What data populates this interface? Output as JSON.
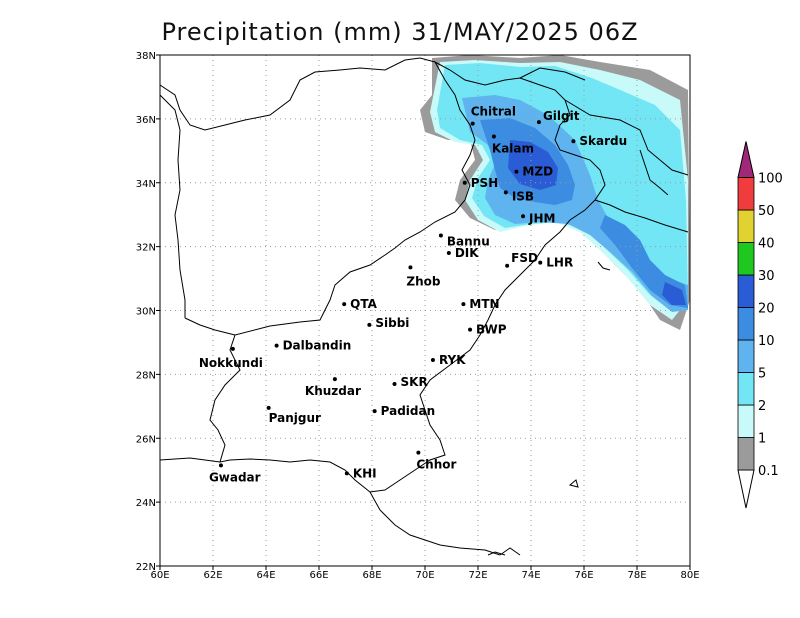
{
  "title": "Precipitation (mm) 31/MAY/2025 06Z",
  "map": {
    "lon_range": [
      60,
      80
    ],
    "lat_range": [
      22,
      38
    ],
    "x_ticks": [
      "60E",
      "62E",
      "64E",
      "66E",
      "68E",
      "70E",
      "72E",
      "74E",
      "76E",
      "78E",
      "80E"
    ],
    "y_ticks": [
      "22N",
      "24N",
      "26N",
      "28N",
      "30N",
      "32N",
      "34N",
      "36N",
      "38N"
    ],
    "gridlines": true
  },
  "cities": [
    {
      "name": "Chitral",
      "lon": 71.8,
      "lat": 35.85
    },
    {
      "name": "Gilgit",
      "lon": 74.3,
      "lat": 35.9
    },
    {
      "name": "Kalam",
      "lon": 72.6,
      "lat": 35.45
    },
    {
      "name": "Skardu",
      "lon": 75.6,
      "lat": 35.3
    },
    {
      "name": "MZD",
      "lon": 73.45,
      "lat": 34.35
    },
    {
      "name": "PSH",
      "lon": 71.5,
      "lat": 34.0
    },
    {
      "name": "ISB",
      "lon": 73.05,
      "lat": 33.7
    },
    {
      "name": "JHM",
      "lon": 73.7,
      "lat": 32.95
    },
    {
      "name": "Bannu",
      "lon": 70.6,
      "lat": 32.35
    },
    {
      "name": "DIK",
      "lon": 70.9,
      "lat": 31.8
    },
    {
      "name": "FSD",
      "lon": 73.1,
      "lat": 31.4
    },
    {
      "name": "LHR",
      "lon": 74.35,
      "lat": 31.5
    },
    {
      "name": "Zhob",
      "lon": 69.45,
      "lat": 31.35
    },
    {
      "name": "QTA",
      "lon": 66.95,
      "lat": 30.2
    },
    {
      "name": "MTN",
      "lon": 71.45,
      "lat": 30.2
    },
    {
      "name": "Sibbi",
      "lon": 67.9,
      "lat": 29.55
    },
    {
      "name": "BWP",
      "lon": 71.7,
      "lat": 29.4
    },
    {
      "name": "Dalbandin",
      "lon": 64.4,
      "lat": 28.9
    },
    {
      "name": "Nokkundi",
      "lon": 62.75,
      "lat": 28.8
    },
    {
      "name": "RYK",
      "lon": 70.3,
      "lat": 28.45
    },
    {
      "name": "Khuzdar",
      "lon": 66.6,
      "lat": 27.85
    },
    {
      "name": "SKR",
      "lon": 68.85,
      "lat": 27.7
    },
    {
      "name": "Panjgur",
      "lon": 64.1,
      "lat": 26.95
    },
    {
      "name": "Padidan",
      "lon": 68.1,
      "lat": 26.85
    },
    {
      "name": "Chhor",
      "lon": 69.75,
      "lat": 25.55
    },
    {
      "name": "KHI",
      "lon": 67.05,
      "lat": 24.9
    },
    {
      "name": "Gwadar",
      "lon": 62.3,
      "lat": 25.15
    }
  ],
  "legend": {
    "labels": [
      "0.1",
      "1",
      "2",
      "5",
      "10",
      "20",
      "30",
      "40",
      "50",
      "100"
    ],
    "colors": {
      "c0": "#9b9b9b",
      "c1": "#c8fafa",
      "c2": "#73e6f5",
      "c3": "#5fb4f0",
      "c4": "#3c8ce1",
      "c5": "#2a5cd6",
      "c6": "#1fc81f",
      "c7": "#e1d232",
      "c8": "#f03c3c",
      "c9": "#a02878"
    }
  }
}
